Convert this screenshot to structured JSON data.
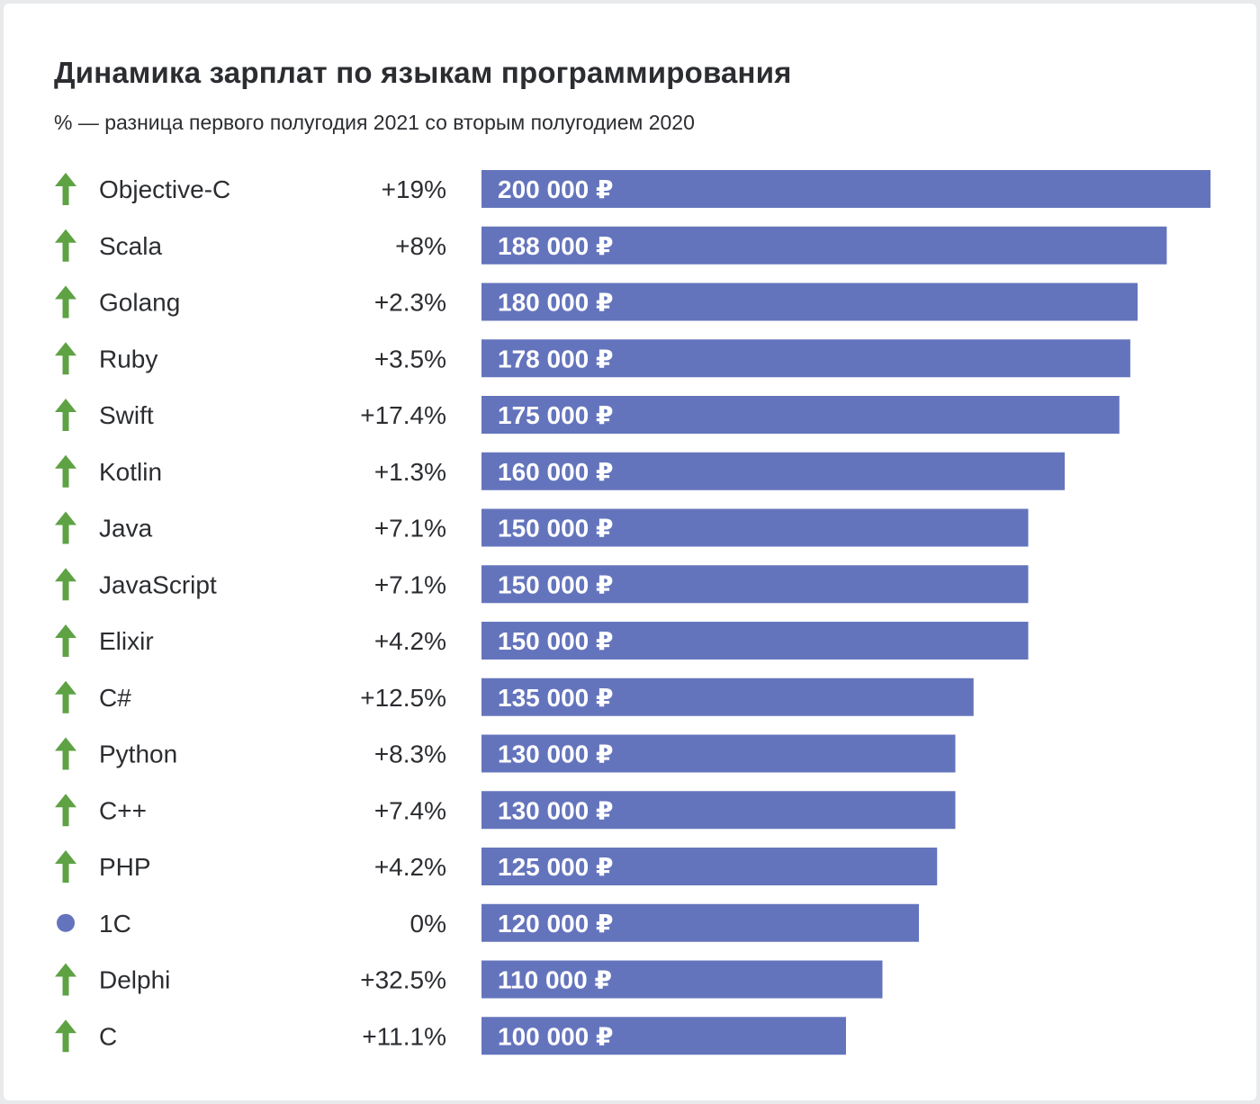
{
  "chart_data": {
    "type": "bar",
    "orientation": "horizontal",
    "title": "Динамика зарплат по языкам программирования",
    "subtitle": "% — разница первого полугодия 2021 со вторым полугодием 2020",
    "xlim": [
      0,
      200000
    ],
    "grid": false,
    "categories": [
      "Objective-C",
      "Scala",
      "Golang",
      "Ruby",
      "Swift",
      "Kotlin",
      "Java",
      "JavaScript",
      "Elixir",
      "C#",
      "Python",
      "C++",
      "PHP",
      "1C",
      "Delphi",
      "C"
    ],
    "values": [
      200000,
      188000,
      180000,
      178000,
      175000,
      160000,
      150000,
      150000,
      150000,
      135000,
      130000,
      130000,
      125000,
      120000,
      110000,
      100000
    ],
    "value_labels": [
      "200 000 ₽",
      "188 000 ₽",
      "180 000 ₽",
      "178 000 ₽",
      "175 000 ₽",
      "160 000 ₽",
      "150 000 ₽",
      "150 000 ₽",
      "150 000 ₽",
      "135 000 ₽",
      "130 000 ₽",
      "130 000 ₽",
      "125 000 ₽",
      "120 000 ₽",
      "110 000 ₽",
      "100 000 ₽"
    ],
    "changes": [
      "+19%",
      "+8%",
      "+2.3%",
      "+3.5%",
      "+17.4%",
      "+1.3%",
      "+7.1%",
      "+7.1%",
      "+4.2%",
      "+12.5%",
      "+8.3%",
      "+7.4%",
      "+4.2%",
      "0%",
      "+32.5%",
      "+11.1%"
    ],
    "trend_icons": [
      "arrow-up-icon",
      "arrow-up-icon",
      "arrow-up-icon",
      "arrow-up-icon",
      "arrow-up-icon",
      "arrow-up-icon",
      "arrow-up-icon",
      "arrow-up-icon",
      "arrow-up-icon",
      "arrow-up-icon",
      "arrow-up-icon",
      "arrow-up-icon",
      "arrow-up-icon",
      "dot-icon",
      "arrow-up-icon",
      "arrow-up-icon"
    ],
    "colors": {
      "bar": "#6474bc",
      "arrow_up": "#5ea244",
      "neutral_dot": "#6474bc"
    }
  }
}
